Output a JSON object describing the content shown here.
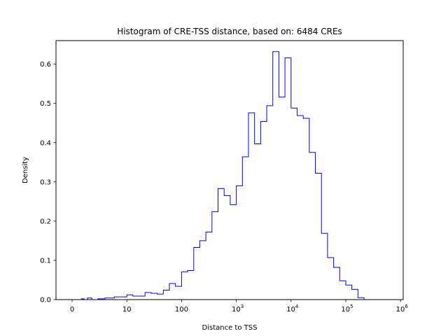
{
  "chart_data": {
    "type": "histogram-step",
    "title": "Histogram of CRE-TSS distance, based on: 6484 CREs",
    "xlabel": "Distance to TSS",
    "ylabel": "Density",
    "xscale": "symlog",
    "ylim": [
      0,
      0.66
    ],
    "grid": false,
    "line_color": "#0000ff",
    "x_ticks": [
      {
        "value": 0,
        "label": "0"
      },
      {
        "value": 10,
        "label": "10"
      },
      {
        "value": 100,
        "label": "100"
      },
      {
        "value": 1000,
        "label": "10",
        "sup": "3"
      },
      {
        "value": 10000,
        "label": "10",
        "sup": "4"
      },
      {
        "value": 100000,
        "label": "10",
        "sup": "5"
      },
      {
        "value": 1000000,
        "label": "10",
        "sup": "6"
      }
    ],
    "y_ticks": [
      {
        "value": 0.0,
        "label": "0.0"
      },
      {
        "value": 0.1,
        "label": "0.1"
      },
      {
        "value": 0.2,
        "label": "0.2"
      },
      {
        "value": 0.3,
        "label": "0.3"
      },
      {
        "value": 0.4,
        "label": "0.4"
      },
      {
        "value": 0.5,
        "label": "0.5"
      },
      {
        "value": 0.6,
        "label": "0.6"
      }
    ],
    "bin_edges": [
      1.0,
      1.3,
      1.7,
      2.2,
      2.8,
      3.6,
      4.7,
      6.0,
      7.7,
      10.0,
      12.9,
      16.7,
      21.5,
      27.8,
      35.9,
      46.4,
      59.9,
      77.4,
      100,
      129,
      167,
      215,
      278,
      359,
      464,
      599,
      774,
      1000,
      1292,
      1668,
      2154,
      2783,
      3594,
      4642,
      5995,
      7743,
      10000,
      12915,
      16681,
      21544,
      27826,
      35938,
      46416,
      59948,
      77426,
      100000,
      129155,
      166810,
      215443,
      278256,
      359381,
      464159,
      599484
    ],
    "densities": [
      0.0,
      0.0,
      0.002,
      0.0,
      0.004,
      0.0,
      0.002,
      0.004,
      0.007,
      0.012,
      0.009,
      0.009,
      0.018,
      0.016,
      0.014,
      0.024,
      0.041,
      0.034,
      0.071,
      0.074,
      0.133,
      0.15,
      0.172,
      0.224,
      0.283,
      0.265,
      0.242,
      0.29,
      0.364,
      0.476,
      0.397,
      0.454,
      0.494,
      0.632,
      0.516,
      0.616,
      0.488,
      0.469,
      0.462,
      0.375,
      0.322,
      0.169,
      0.107,
      0.082,
      0.048,
      0.037,
      0.026,
      0.005,
      0.0,
      0.0,
      0.0,
      0.0
    ]
  }
}
